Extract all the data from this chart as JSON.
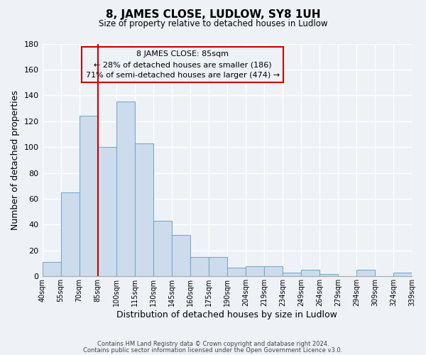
{
  "title": "8, JAMES CLOSE, LUDLOW, SY8 1UH",
  "subtitle": "Size of property relative to detached houses in Ludlow",
  "xlabel": "Distribution of detached houses by size in Ludlow",
  "ylabel": "Number of detached properties",
  "bar_labels": [
    "40sqm",
    "55sqm",
    "70sqm",
    "85sqm",
    "100sqm",
    "115sqm",
    "130sqm",
    "145sqm",
    "160sqm",
    "175sqm",
    "190sqm",
    "204sqm",
    "219sqm",
    "234sqm",
    "249sqm",
    "264sqm",
    "279sqm",
    "294sqm",
    "309sqm",
    "324sqm",
    "339sqm"
  ],
  "bar_heights": [
    11,
    65,
    124,
    100,
    135,
    103,
    43,
    32,
    15,
    15,
    7,
    8,
    8,
    3,
    5,
    2,
    0,
    5,
    0,
    3
  ],
  "bar_color": "#ccdcec",
  "bar_edge_color": "#7aaac8",
  "vline_x": 3,
  "vline_color": "#cc0000",
  "ylim": [
    0,
    180
  ],
  "yticks": [
    0,
    20,
    40,
    60,
    80,
    100,
    120,
    140,
    160,
    180
  ],
  "annotation_title": "8 JAMES CLOSE: 85sqm",
  "annotation_line1": "← 28% of detached houses are smaller (186)",
  "annotation_line2": "71% of semi-detached houses are larger (474) →",
  "annotation_box_edge": "#cc0000",
  "footer_line1": "Contains HM Land Registry data © Crown copyright and database right 2024.",
  "footer_line2": "Contains public sector information licensed under the Open Government Licence v3.0.",
  "background_color": "#eef2f7",
  "grid_color": "#ffffff"
}
